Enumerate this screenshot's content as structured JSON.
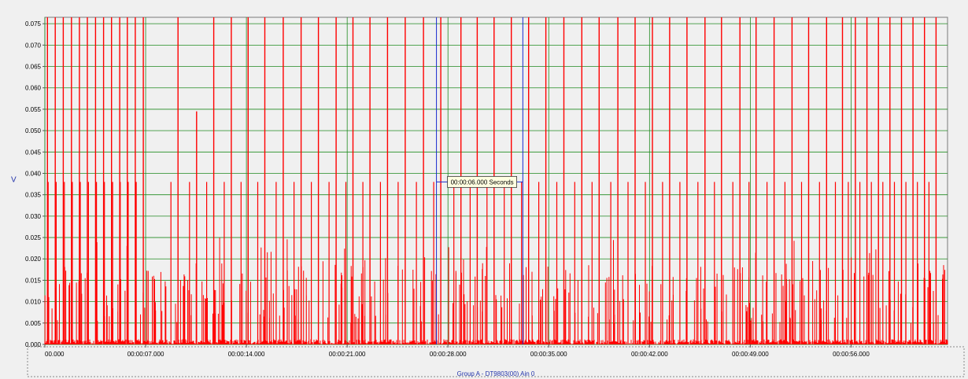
{
  "chart_data": {
    "type": "line",
    "ylabel": "V",
    "xlabel": "",
    "ylim": [
      0,
      0.0765
    ],
    "xlim_seconds": [
      0,
      62.7
    ],
    "yticks": [
      "0.000",
      "0.005",
      "0.010",
      "0.015",
      "0.020",
      "0.025",
      "0.030",
      "0.035",
      "0.040",
      "0.045",
      "0.050",
      "0.055",
      "0.060",
      "0.065",
      "0.070",
      "0.075"
    ],
    "xticks": [
      "00.000",
      "00:00:07.000",
      "00:00:14.000",
      "00:00:21.000",
      "00:00:28.000",
      "00:00:35.000",
      "00:00:42.000",
      "00:00:49.000",
      "00:00:56.000"
    ],
    "grid": true,
    "series": [
      {
        "name": "Group A - DT9803(00) Ain 0",
        "color": "#ff0000",
        "major_spike_times_s": [
          0.18,
          0.72,
          1.28,
          1.85,
          2.4,
          2.95,
          3.52,
          4.08,
          4.63,
          5.2,
          5.73,
          6.28,
          6.84,
          9.25,
          10.54,
          11.73,
          12.95,
          14.12,
          15.28,
          16.56,
          17.8,
          19.0,
          20.23,
          21.4,
          22.58,
          23.8,
          25.03,
          26.3,
          27.5,
          28.9,
          30.03,
          31.2,
          32.4,
          33.6,
          34.8,
          36.05,
          37.3,
          38.5,
          39.8,
          41.0,
          42.2,
          43.4,
          44.6,
          45.85,
          47.0,
          48.28,
          49.4,
          50.65,
          51.9,
          53.05,
          54.3,
          55.4,
          56.3,
          57.1,
          57.9,
          58.7,
          59.5,
          60.3,
          61.1,
          61.9
        ],
        "major_spike_peaks_V": [
          0.0765,
          0.0765,
          0.0765,
          0.0765,
          0.0765,
          0.0765,
          0.0765,
          0.0765,
          0.0765,
          0.0765,
          0.0765,
          0.0765,
          0.0765,
          0.0765,
          0.0545,
          0.0765,
          0.0765,
          0.0765,
          0.0765,
          0.0765,
          0.0765,
          0.0765,
          0.0765,
          0.0765,
          0.0765,
          0.0765,
          0.0765,
          0.0765,
          0.0765,
          0.0765,
          0.0765,
          0.0765,
          0.0765,
          0.0765,
          0.0765,
          0.0765,
          0.0765,
          0.0765,
          0.0765,
          0.0765,
          0.0765,
          0.0765,
          0.0765,
          0.0765,
          0.0765,
          0.0765,
          0.0765,
          0.0765,
          0.0765,
          0.0765,
          0.0765,
          0.0765,
          0.0765,
          0.0765,
          0.0765,
          0.0765,
          0.0765,
          0.0765,
          0.0765,
          0.0765
        ],
        "secondary_level_V": 0.038,
        "minor_spike_range_V": [
          0.005,
          0.025
        ],
        "baseline_noise_V": 0.0012
      }
    ],
    "cursors_s": [
      27.2,
      33.2
    ],
    "cursor_readout": "00:00:06.000 Seconds",
    "legend_text": "Group A - DT9803(00) Ain 0",
    "legend_position": "bottom-center"
  }
}
